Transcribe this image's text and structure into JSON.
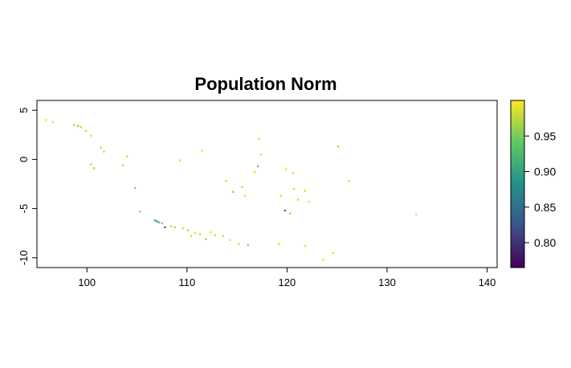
{
  "chart_data": {
    "type": "heatmap",
    "title": "Population Norm",
    "xlabel": "",
    "ylabel": "",
    "xlim": [
      95,
      141
    ],
    "ylim": [
      -11,
      6
    ],
    "x_ticks": [
      100,
      110,
      120,
      130,
      140
    ],
    "y_ticks": [
      5,
      0,
      -5,
      -10
    ],
    "x_tick_labels": [
      "100",
      "110",
      "120",
      "130",
      "140"
    ],
    "y_tick_labels": [
      "5",
      "0",
      "-5",
      "-10"
    ],
    "grid": false,
    "legend": {
      "placement": "right",
      "type": "colorbar",
      "colormap": "viridis",
      "range": [
        0.765,
        1.0
      ],
      "ticks": [
        0.8,
        0.85,
        0.9,
        0.95
      ],
      "tick_labels": [
        "0.80",
        "0.85",
        "0.90",
        "0.95"
      ],
      "colors": [
        "#440154",
        "#3b528b",
        "#21918c",
        "#5ec962",
        "#fde725"
      ]
    },
    "points": [
      {
        "x": 95.9,
        "y": 4.0,
        "v": 0.99
      },
      {
        "x": 96.6,
        "y": 3.8,
        "v": 0.99
      },
      {
        "x": 98.7,
        "y": 3.5,
        "v": 0.97
      },
      {
        "x": 99.1,
        "y": 3.4,
        "v": 0.96
      },
      {
        "x": 99.4,
        "y": 3.3,
        "v": 0.98
      },
      {
        "x": 99.9,
        "y": 2.9,
        "v": 0.98
      },
      {
        "x": 100.4,
        "y": 2.4,
        "v": 0.99
      },
      {
        "x": 101.4,
        "y": 1.2,
        "v": 0.98
      },
      {
        "x": 101.7,
        "y": 0.8,
        "v": 0.98
      },
      {
        "x": 100.4,
        "y": -0.5,
        "v": 0.98
      },
      {
        "x": 100.7,
        "y": -0.9,
        "v": 0.97
      },
      {
        "x": 103.6,
        "y": -0.6,
        "v": 0.98
      },
      {
        "x": 104.0,
        "y": 0.3,
        "v": 0.98
      },
      {
        "x": 104.8,
        "y": -2.9,
        "v": 0.96
      },
      {
        "x": 105.3,
        "y": -5.3,
        "v": 0.97
      },
      {
        "x": 106.8,
        "y": -6.2,
        "v": 0.91
      },
      {
        "x": 107.0,
        "y": -6.3,
        "v": 0.9
      },
      {
        "x": 107.2,
        "y": -6.4,
        "v": 0.93
      },
      {
        "x": 107.5,
        "y": -6.5,
        "v": 0.96
      },
      {
        "x": 107.8,
        "y": -6.9,
        "v": 0.87
      },
      {
        "x": 108.4,
        "y": -6.8,
        "v": 0.98
      },
      {
        "x": 108.8,
        "y": -6.9,
        "v": 0.97
      },
      {
        "x": 109.6,
        "y": -7.0,
        "v": 0.98
      },
      {
        "x": 110.1,
        "y": -7.2,
        "v": 0.97
      },
      {
        "x": 110.4,
        "y": -7.8,
        "v": 0.98
      },
      {
        "x": 110.8,
        "y": -7.5,
        "v": 0.99
      },
      {
        "x": 111.3,
        "y": -7.6,
        "v": 0.98
      },
      {
        "x": 111.9,
        "y": -8.1,
        "v": 0.97
      },
      {
        "x": 112.4,
        "y": -7.4,
        "v": 0.99
      },
      {
        "x": 112.8,
        "y": -7.7,
        "v": 0.98
      },
      {
        "x": 113.6,
        "y": -7.8,
        "v": 0.98
      },
      {
        "x": 114.3,
        "y": -8.2,
        "v": 0.99
      },
      {
        "x": 115.2,
        "y": -8.6,
        "v": 0.99
      },
      {
        "x": 116.1,
        "y": -8.7,
        "v": 0.96
      },
      {
        "x": 119.2,
        "y": -8.6,
        "v": 0.99
      },
      {
        "x": 121.8,
        "y": -8.8,
        "v": 0.99
      },
      {
        "x": 123.6,
        "y": -10.2,
        "v": 0.99
      },
      {
        "x": 124.6,
        "y": -9.5,
        "v": 0.99
      },
      {
        "x": 109.3,
        "y": -0.1,
        "v": 0.99
      },
      {
        "x": 111.5,
        "y": 0.9,
        "v": 0.99
      },
      {
        "x": 113.9,
        "y": -2.2,
        "v": 0.98
      },
      {
        "x": 114.6,
        "y": -3.3,
        "v": 0.96
      },
      {
        "x": 115.5,
        "y": -2.8,
        "v": 0.98
      },
      {
        "x": 115.8,
        "y": -3.7,
        "v": 0.98
      },
      {
        "x": 116.8,
        "y": -1.3,
        "v": 0.99
      },
      {
        "x": 117.1,
        "y": -0.7,
        "v": 0.94
      },
      {
        "x": 117.4,
        "y": 0.5,
        "v": 0.99
      },
      {
        "x": 117.2,
        "y": 2.1,
        "v": 0.99
      },
      {
        "x": 119.9,
        "y": -1.0,
        "v": 0.99
      },
      {
        "x": 120.6,
        "y": -1.4,
        "v": 0.99
      },
      {
        "x": 119.4,
        "y": -3.7,
        "v": 0.98
      },
      {
        "x": 119.8,
        "y": -5.2,
        "v": 0.86
      },
      {
        "x": 120.3,
        "y": -5.5,
        "v": 0.97
      },
      {
        "x": 121.1,
        "y": -4.1,
        "v": 0.98
      },
      {
        "x": 121.8,
        "y": -3.2,
        "v": 0.98
      },
      {
        "x": 122.2,
        "y": -4.3,
        "v": 0.99
      },
      {
        "x": 120.7,
        "y": -3.0,
        "v": 0.99
      },
      {
        "x": 125.1,
        "y": 1.3,
        "v": 0.97
      },
      {
        "x": 126.2,
        "y": -2.2,
        "v": 0.99
      },
      {
        "x": 132.9,
        "y": -5.6,
        "v": 0.99
      }
    ]
  }
}
